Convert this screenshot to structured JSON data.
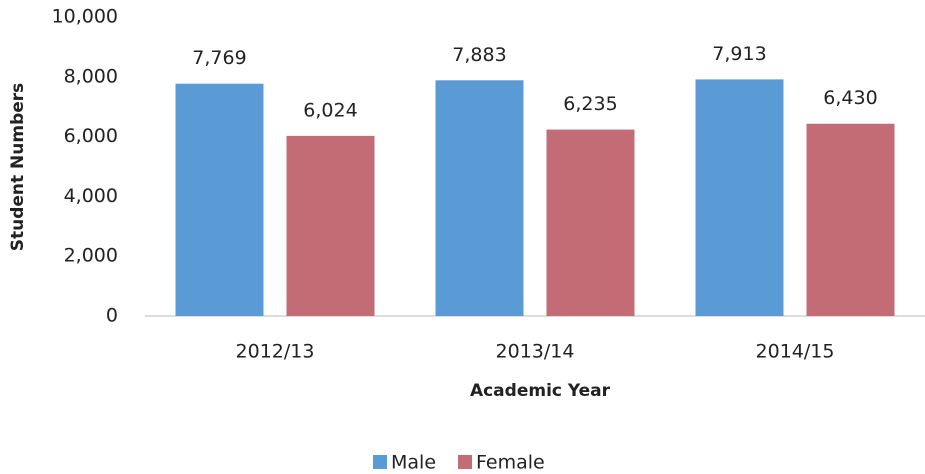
{
  "chart_data": {
    "type": "bar",
    "categories": [
      "2012/13",
      "2013/14",
      "2014/15"
    ],
    "series": [
      {
        "name": "Male",
        "color": "#5b9bd5",
        "values": [
          7769,
          7883,
          7913
        ],
        "value_labels": [
          "7,769",
          "7,883",
          "7,913"
        ]
      },
      {
        "name": "Female",
        "color": "#c36c75",
        "values": [
          6024,
          6235,
          6430
        ],
        "value_labels": [
          "6,024",
          "6,235",
          "6,430"
        ]
      }
    ],
    "ylim": [
      0,
      10000
    ],
    "yticks": [
      0,
      {
        "value": 2000,
        "label": "2,000"
      },
      {
        "value": 4000,
        "label": "4,000"
      },
      {
        "value": 6000,
        "label": "6,000"
      },
      {
        "value": 8000,
        "label": "8,000"
      },
      {
        "value": 10000,
        "label": "10,000"
      }
    ],
    "xlabel": "Academic Year",
    "ylabel": "Student Numbers",
    "grid": false,
    "legend": "bottom"
  }
}
